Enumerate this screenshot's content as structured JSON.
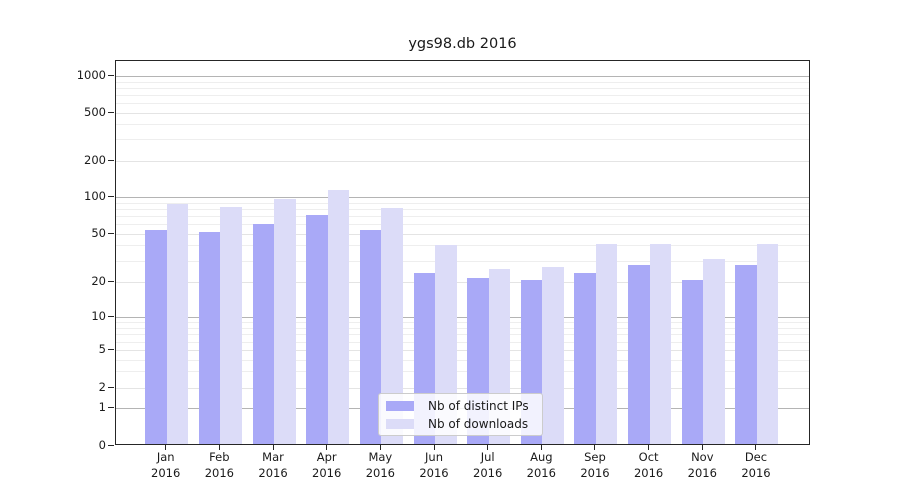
{
  "title": "ygs98.db 2016",
  "colors": {
    "distinct_ips": "#a9a9f7",
    "downloads": "#dcdcf8",
    "grid_decade": "#b4b4b4",
    "grid_labeled": "#e4e4e4",
    "grid_minor": "#eeeeee",
    "spine": "#262626",
    "text": "#1a1a1a",
    "legend_border": "#cccccc",
    "legend_bg": "rgba(255,255,255,0.85)"
  },
  "legend": {
    "items": [
      {
        "label": "Nb of distinct IPs",
        "series_key": "distinct_ips"
      },
      {
        "label": "Nb of downloads",
        "series_key": "downloads"
      }
    ]
  },
  "x_axis": {
    "months": [
      "Jan",
      "Feb",
      "Mar",
      "Apr",
      "May",
      "Jun",
      "Jul",
      "Aug",
      "Sep",
      "Oct",
      "Nov",
      "Dec"
    ],
    "year": "2016"
  },
  "y_axis": {
    "tick_values": [
      1000,
      500,
      200,
      100,
      50,
      20,
      10,
      5,
      2,
      1,
      0
    ]
  },
  "chart_data": {
    "type": "bar",
    "title": "ygs98.db 2016",
    "categories": [
      "Jan 2016",
      "Feb 2016",
      "Mar 2016",
      "Apr 2016",
      "May 2016",
      "Jun 2016",
      "Jul 2016",
      "Aug 2016",
      "Sep 2016",
      "Oct 2016",
      "Nov 2016",
      "Dec 2016"
    ],
    "series": [
      {
        "name": "Nb of distinct IPs",
        "key": "distinct_ips",
        "values": [
          52,
          50,
          59,
          70,
          52,
          23,
          21,
          20,
          23,
          27,
          20,
          27
        ]
      },
      {
        "name": "Nb of downloads",
        "key": "downloads",
        "values": [
          85,
          81,
          94,
          111,
          80,
          39,
          25,
          26,
          40,
          40,
          30,
          40
        ]
      }
    ],
    "yscale": "symlog",
    "ylim": [
      0,
      1000
    ],
    "yticks": [
      0,
      1,
      2,
      5,
      10,
      20,
      50,
      100,
      200,
      500,
      1000
    ],
    "grid": true,
    "legend_position": "lower center"
  }
}
